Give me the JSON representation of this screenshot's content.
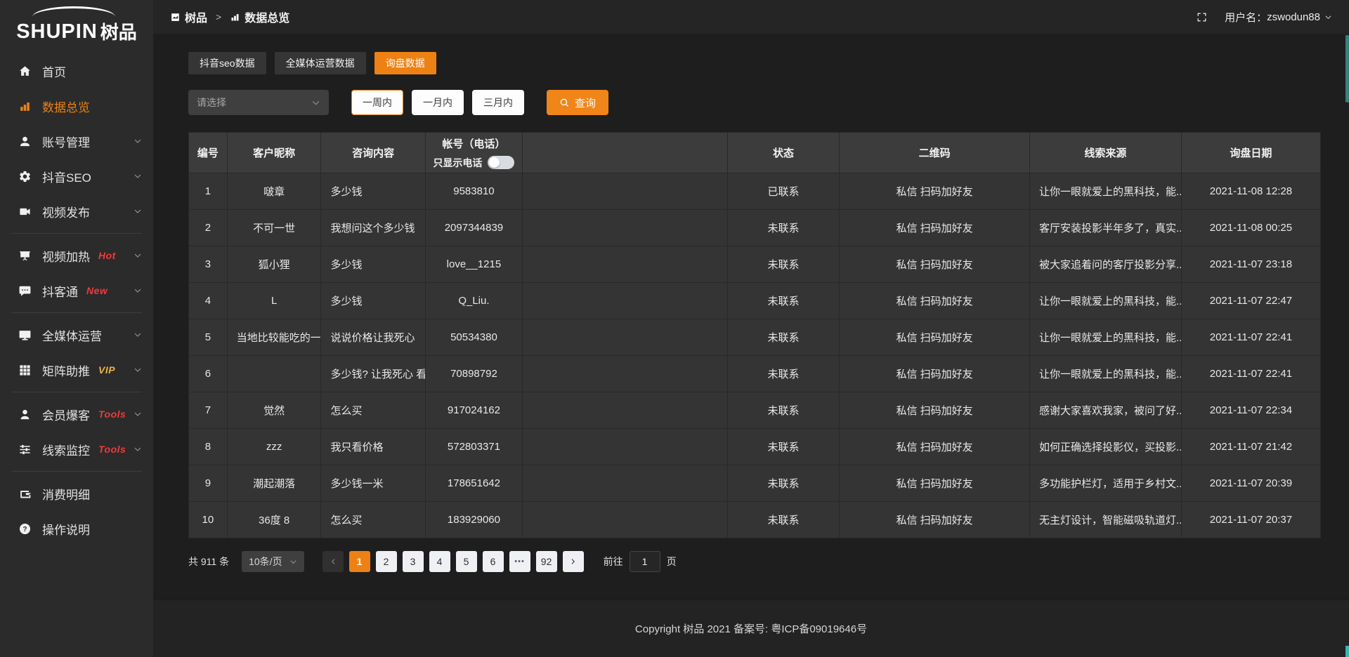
{
  "app": {
    "logo_en": "SHUPIN",
    "logo_cn": "树品"
  },
  "header": {
    "breadcrumb": [
      {
        "label": "树品",
        "icon": "dashboard-icon"
      },
      {
        "label": "数据总览",
        "icon": "bar-chart-icon"
      }
    ],
    "separator": ">",
    "username_label": "用户名：",
    "username": "zswodun88"
  },
  "sidebar": {
    "items": [
      {
        "name": "home",
        "label": "首页",
        "icon": "home-icon"
      },
      {
        "name": "data-overview",
        "label": "数据总览",
        "icon": "bar-chart-icon",
        "active": true
      },
      {
        "name": "account-management",
        "label": "账号管理",
        "icon": "user-icon",
        "arrow": true
      },
      {
        "name": "douyin-seo",
        "label": "抖音SEO",
        "icon": "gear-icon",
        "arrow": true
      },
      {
        "name": "video-publish",
        "label": "视频发布",
        "icon": "video-icon",
        "arrow": true
      },
      {
        "divider": true
      },
      {
        "name": "video-heating",
        "label": "视频加热",
        "icon": "screen-icon",
        "badge": "Hot",
        "badge_color": "red",
        "arrow": true
      },
      {
        "name": "douketong",
        "label": "抖客通",
        "icon": "chat-icon",
        "badge": "New",
        "badge_color": "red",
        "arrow": true
      },
      {
        "divider": true
      },
      {
        "name": "media-operation",
        "label": "全媒体运营",
        "icon": "monitor-icon",
        "arrow": true
      },
      {
        "name": "matrix-boost",
        "label": "矩阵助推",
        "icon": "grid-icon",
        "badge": "VIP",
        "badge_color": "gold",
        "arrow": true
      },
      {
        "divider": true
      },
      {
        "name": "member-baoke",
        "label": "会员爆客",
        "icon": "member-icon",
        "badge": "Tools",
        "badge_color": "red",
        "arrow": true
      },
      {
        "name": "clue-monitor",
        "label": "线索监控",
        "icon": "equalizer-icon",
        "badge": "Tools",
        "badge_color": "red",
        "arrow": true
      },
      {
        "divider": true
      },
      {
        "name": "consumption-detail",
        "label": "消费明细",
        "icon": "wallet-icon"
      },
      {
        "name": "operation-guide",
        "label": "操作说明",
        "icon": "question-icon"
      }
    ]
  },
  "tabs": [
    {
      "name": "douyin-seo-data",
      "label": "抖音seo数据",
      "active": false
    },
    {
      "name": "media-operation-data",
      "label": "全媒体运营数据",
      "active": false
    },
    {
      "name": "inquiry-data",
      "label": "询盘数据",
      "active": true
    }
  ],
  "filters": {
    "select_placeholder": "请选择",
    "range_buttons": [
      {
        "name": "week",
        "label": "一周内",
        "active": true
      },
      {
        "name": "month",
        "label": "一月内",
        "active": false
      },
      {
        "name": "quarter",
        "label": "三月内",
        "active": false
      }
    ],
    "search_label": "查询"
  },
  "table": {
    "columns": [
      {
        "key": "id",
        "label": "编号",
        "width": "3.4%"
      },
      {
        "key": "nickname",
        "label": "客户昵称",
        "width": "8.3%"
      },
      {
        "key": "content",
        "label": "咨询内容",
        "width": "9.2%",
        "align": "left"
      },
      {
        "key": "account",
        "label": "帐号（电话）",
        "width": "8.6%",
        "toggle_label": "只显示电话"
      },
      {
        "key": "spacer",
        "label": "",
        "width": "18.1%"
      },
      {
        "key": "status",
        "label": "状态",
        "width": "9.9%"
      },
      {
        "key": "qrcode",
        "label": "二维码",
        "width": "16.8%"
      },
      {
        "key": "source",
        "label": "线索来源",
        "width": "13.4%",
        "align": "left"
      },
      {
        "key": "date",
        "label": "询盘日期",
        "width": "12.3%"
      }
    ],
    "rows": [
      {
        "id": "1",
        "nickname": "啵章",
        "content": "多少钱",
        "account": "9583810",
        "status": "已联系",
        "status_type": "contacted",
        "qrcode": "私信 扫码加好友",
        "source": "让你一眼就爱上的黑科技，能...",
        "date": "2021-11-08 12:28"
      },
      {
        "id": "2",
        "nickname": "不可一世",
        "content": "我想问这个多少钱",
        "account": "2097344839",
        "status": "未联系",
        "status_type": "pending",
        "qrcode": "私信 扫码加好友",
        "source": "客厅安装投影半年多了，真实...",
        "date": "2021-11-08 00:25"
      },
      {
        "id": "3",
        "nickname": "狐小狸",
        "content": "多少钱",
        "account": "love__1215",
        "status": "未联系",
        "status_type": "pending",
        "qrcode": "私信 扫码加好友",
        "source": "被大家追着问的客厅投影分享...",
        "date": "2021-11-07 23:18"
      },
      {
        "id": "4",
        "nickname": "L",
        "content": "多少钱",
        "account": "Q_Liu.",
        "status": "未联系",
        "status_type": "pending",
        "qrcode": "私信 扫码加好友",
        "source": "让你一眼就爱上的黑科技，能...",
        "date": "2021-11-07 22:47"
      },
      {
        "id": "5",
        "nickname": "当地比较能吃的一位美女",
        "content": "说说价格让我死心",
        "account": "50534380",
        "status": "未联系",
        "status_type": "pending",
        "qrcode": "私信 扫码加好友",
        "source": "让你一眼就爱上的黑科技，能...",
        "date": "2021-11-07 22:41"
      },
      {
        "id": "6",
        "nickname": "",
        "content": "多少钱? 让我死心 看",
        "account": "70898792",
        "status": "未联系",
        "status_type": "pending",
        "qrcode": "私信 扫码加好友",
        "source": "让你一眼就爱上的黑科技，能...",
        "date": "2021-11-07 22:41"
      },
      {
        "id": "7",
        "nickname": "觉然",
        "content": "怎么买",
        "account": "917024162",
        "status": "未联系",
        "status_type": "pending",
        "qrcode": "私信 扫码加好友",
        "source": "感谢大家喜欢我家，被问了好...",
        "date": "2021-11-07 22:34"
      },
      {
        "id": "8",
        "nickname": "zzz",
        "content": "我只看价格",
        "account": "572803371",
        "status": "未联系",
        "status_type": "pending",
        "qrcode": "私信 扫码加好友",
        "source": "如何正确选择投影仪，买投影...",
        "date": "2021-11-07 21:42"
      },
      {
        "id": "9",
        "nickname": "潮起潮落",
        "content": "多少钱一米",
        "account": "178651642",
        "status": "未联系",
        "status_type": "pending",
        "qrcode": "私信 扫码加好友",
        "source": "多功能护栏灯，适用于乡村文...",
        "date": "2021-11-07 20:39"
      },
      {
        "id": "10",
        "nickname": "36度 8",
        "content": "怎么买",
        "account": "183929060",
        "status": "未联系",
        "status_type": "pending",
        "qrcode": "私信 扫码加好友",
        "source": "无主灯设计，智能磁吸轨道灯...",
        "date": "2021-11-07 20:37"
      }
    ]
  },
  "pagination": {
    "total_label": "共 911 条",
    "page_size_label": "10条/页",
    "pages": [
      "1",
      "2",
      "3",
      "4",
      "5",
      "6",
      "•••",
      "92"
    ],
    "active_page": "1",
    "goto_label": "前往",
    "goto_value": "1",
    "goto_suffix": "页"
  },
  "footer": {
    "copyright": "Copyright 树品 2021 备案号: 粤ICP备09019646号"
  },
  "colors": {
    "accent": "#ee8113",
    "link_orange": "#e2903a",
    "badge_red": "#f13a3a",
    "badge_gold": "#ecb344",
    "sidebar_bg": "#2b2b2b",
    "table_row_bg": "#343434",
    "table_header_bg": "#3c3c3c"
  }
}
